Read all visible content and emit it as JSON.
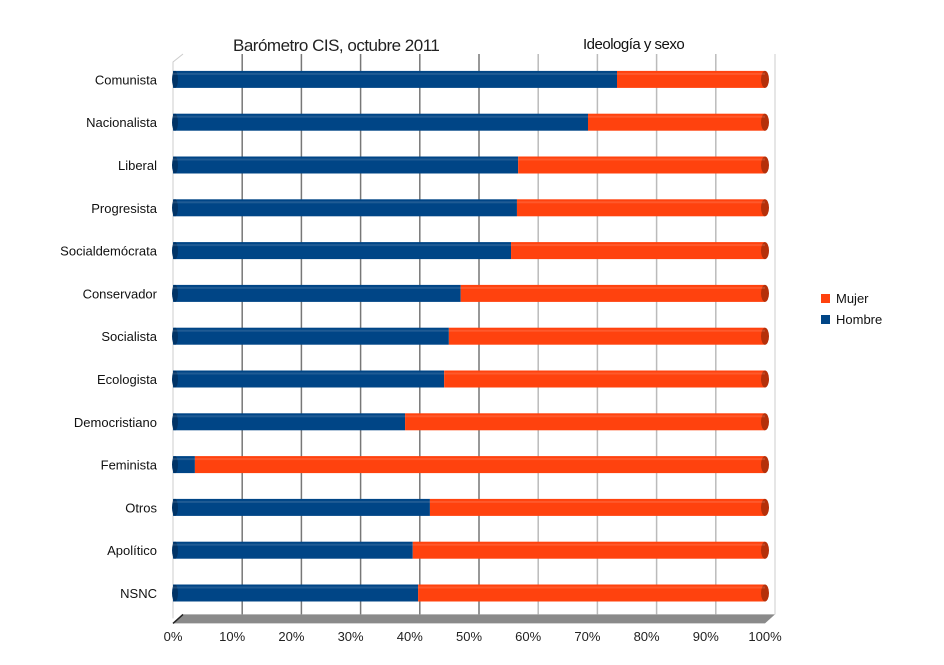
{
  "chart_data": {
    "type": "bar",
    "orientation": "horizontal",
    "stacked": "percent",
    "title": "Barómetro CIS, octubre 2011",
    "subtitle": "Ideología y sexo",
    "categories": [
      "Comunista",
      "Nacionalista",
      "Liberal",
      "Progresista",
      "Socialdemócrata",
      "Conservador",
      "Socialista",
      "Ecologista",
      "Democristiano",
      "Feminista",
      "Otros",
      "Apolítico",
      "NSNC"
    ],
    "series": [
      {
        "name": "Hombre",
        "color": "#004586",
        "values": [
          75.0,
          70.1,
          58.3,
          58.1,
          57.1,
          48.6,
          46.6,
          45.8,
          39.2,
          3.7,
          43.4,
          40.5,
          41.4
        ]
      },
      {
        "name": "Mujer",
        "color": "#ff420e",
        "values": [
          25.0,
          29.9,
          41.7,
          41.9,
          42.9,
          51.4,
          53.4,
          54.2,
          60.8,
          96.3,
          56.6,
          59.5,
          58.6
        ]
      }
    ],
    "xticks": [
      "0%",
      "10%",
      "20%",
      "30%",
      "40%",
      "50%",
      "60%",
      "70%",
      "80%",
      "90%",
      "100%"
    ],
    "xlim": [
      0,
      100
    ],
    "grid": true,
    "legend": {
      "placement": "right",
      "entries": [
        "Mujer",
        "Hombre"
      ]
    }
  }
}
